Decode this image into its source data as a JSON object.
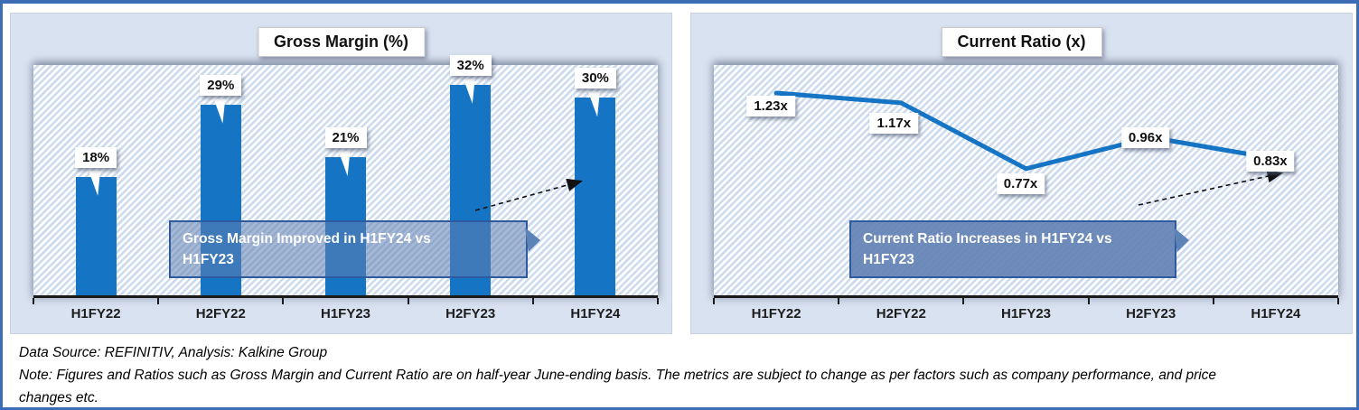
{
  "footer": {
    "source_line": "Data Source: REFINITIV, Analysis: Kalkine Group",
    "note_line": "Note: Figures and Ratios such as Gross Margin and Current Ratio are on half-year June-ending basis. The metrics are subject to change as per factors such as company performance, and price changes etc."
  },
  "colors": {
    "accent_blue": "#1674c4",
    "panel_background": "#d9e2f0",
    "frame_border": "#3c6cb4",
    "annotation_fill": "#5d82b5",
    "annotation_border": "#2e5aa0",
    "stripe_blue": "#cddbee"
  },
  "chart_data": [
    {
      "type": "bar",
      "title": "Gross Margin (%)",
      "categories": [
        "H1FY22",
        "H2FY22",
        "H1FY23",
        "H2FY23",
        "H1FY24"
      ],
      "values": [
        18,
        29,
        21,
        32,
        30
      ],
      "data_labels": [
        "18%",
        "29%",
        "21%",
        "32%",
        "30%"
      ],
      "xlabel": "",
      "ylabel": "",
      "ylim": [
        0,
        35
      ],
      "grid": false,
      "legend": "none",
      "annotation_lines": [
        "Gross Margin Improved in H1FY24 vs",
        "H1FY23"
      ]
    },
    {
      "type": "line",
      "title": "Current Ratio (x)",
      "categories": [
        "H1FY22",
        "H2FY22",
        "H1FY23",
        "H2FY23",
        "H1FY24"
      ],
      "values": [
        1.23,
        1.17,
        0.77,
        0.96,
        0.83
      ],
      "data_labels": [
        "1.23x",
        "1.17x",
        "0.77x",
        "0.96x",
        "0.83x"
      ],
      "xlabel": "",
      "ylabel": "",
      "ylim": [
        0,
        1.4
      ],
      "grid": false,
      "legend": "none",
      "annotation_lines": [
        "Current Ratio Increases in H1FY24 vs",
        "H1FY23"
      ]
    }
  ]
}
